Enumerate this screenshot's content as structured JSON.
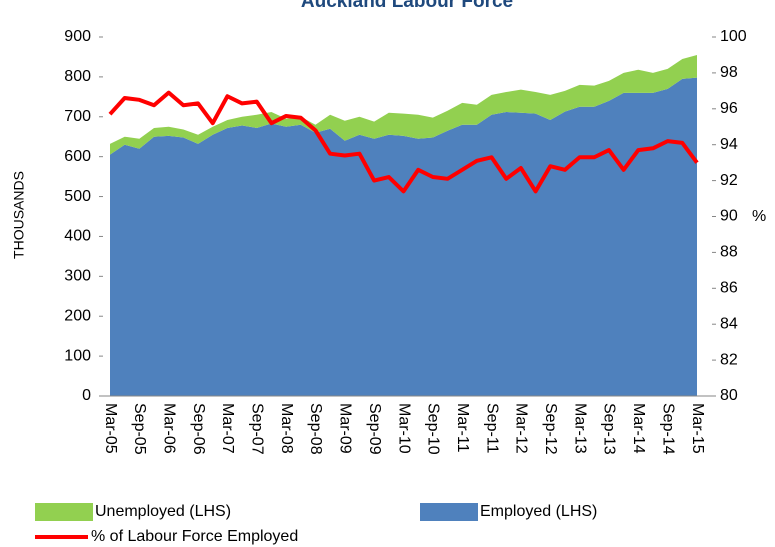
{
  "chart_data": {
    "type": "stacked-area-line",
    "title": "Auckland Labour Force",
    "y_label": "THOUSANDS",
    "y2_label": "%",
    "categories": [
      "Mar-05",
      null,
      "Sep-05",
      null,
      "Mar-06",
      null,
      "Sep-06",
      null,
      "Mar-07",
      null,
      "Sep-07",
      null,
      "Mar-08",
      null,
      "Sep-08",
      null,
      "Mar-09",
      null,
      "Sep-09",
      null,
      "Mar-10",
      null,
      "Sep-10",
      null,
      "Mar-11",
      null,
      "Sep-11",
      null,
      "Mar-12",
      null,
      "Sep-12",
      null,
      "Mar-13",
      null,
      "Sep-13",
      null,
      "Mar-14",
      null,
      "Sep-14",
      null,
      "Mar-15"
    ],
    "series": [
      {
        "name": "Employed (LHS)",
        "color": "#4f81bd",
        "values": [
          605,
          630,
          620,
          650,
          652,
          648,
          632,
          655,
          672,
          678,
          672,
          683,
          675,
          680,
          660,
          670,
          640,
          655,
          645,
          655,
          652,
          645,
          648,
          665,
          680,
          680,
          705,
          712,
          710,
          708,
          692,
          713,
          725,
          725,
          740,
          760,
          760,
          760,
          770,
          795,
          798
        ]
      },
      {
        "name": "Unemployed (LHS)",
        "color": "#92d050",
        "values": [
          27,
          20,
          25,
          22,
          23,
          20,
          23,
          20,
          20,
          22,
          33,
          29,
          20,
          20,
          20,
          35,
          50,
          45,
          43,
          55,
          56,
          60,
          50,
          50,
          55,
          50,
          50,
          50,
          58,
          54,
          63,
          52,
          55,
          53,
          50,
          50,
          58,
          50,
          50,
          50,
          57
        ]
      },
      {
        "name": "% of Labour Force Employed",
        "color": "#ff0000",
        "axis": "y2",
        "values": [
          95.7,
          96.6,
          96.5,
          96.2,
          96.9,
          96.2,
          96.3,
          95.2,
          96.7,
          96.3,
          96.4,
          95.2,
          95.6,
          95.5,
          94.8,
          93.5,
          93.4,
          93.5,
          92.0,
          92.2,
          91.4,
          92.6,
          92.2,
          92.1,
          92.6,
          93.1,
          93.3,
          92.1,
          92.7,
          91.4,
          92.8,
          92.6,
          93.3,
          93.3,
          93.7,
          92.6,
          93.7,
          93.8,
          94.2,
          94.1,
          93.0
        ]
      }
    ],
    "ylim": [
      0,
      900
    ],
    "yticks": [
      0,
      100,
      200,
      300,
      400,
      500,
      600,
      700,
      800,
      900
    ],
    "y2lim": [
      80,
      100
    ],
    "y2ticks": [
      80,
      82,
      84,
      86,
      88,
      90,
      92,
      94,
      96,
      98,
      100
    ]
  }
}
